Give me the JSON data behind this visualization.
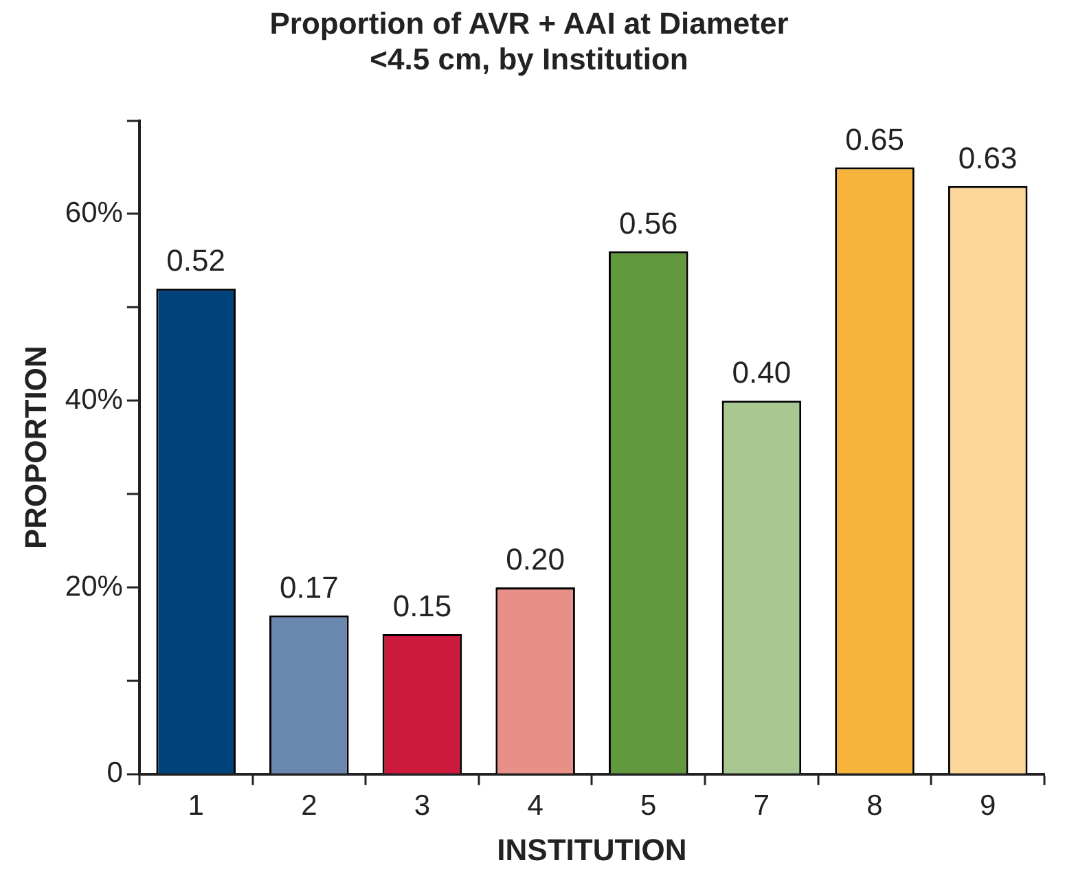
{
  "chart_data": {
    "type": "bar",
    "title": [
      "Proportion of AVR + AAI at Diameter",
      "<4.5 cm, by Institution"
    ],
    "xlabel": "INSTITUTION",
    "ylabel": "PROPORTION",
    "categories": [
      "1",
      "2",
      "3",
      "4",
      "5",
      "7",
      "8",
      "9"
    ],
    "values": [
      0.52,
      0.17,
      0.15,
      0.2,
      0.56,
      0.4,
      0.65,
      0.63
    ],
    "value_labels": [
      "0.52",
      "0.17",
      "0.15",
      "0.20",
      "0.56",
      "0.40",
      "0.65",
      "0.63"
    ],
    "colors": [
      "#00427a",
      "#6a87b0",
      "#cc1a3c",
      "#e88f87",
      "#62993f",
      "#a9c791",
      "#f7b43c",
      "#fdd699"
    ],
    "ylim": [
      0,
      0.7
    ],
    "yticks": [
      {
        "value": 0,
        "label": "0"
      },
      {
        "value": 0.1,
        "label": null
      },
      {
        "value": 0.2,
        "label": "20%"
      },
      {
        "value": 0.3,
        "label": null
      },
      {
        "value": 0.4,
        "label": "40%"
      },
      {
        "value": 0.5,
        "label": null
      },
      {
        "value": 0.6,
        "label": "60%"
      },
      {
        "value": 0.7,
        "label": null
      }
    ],
    "grid": false,
    "legend": false
  }
}
